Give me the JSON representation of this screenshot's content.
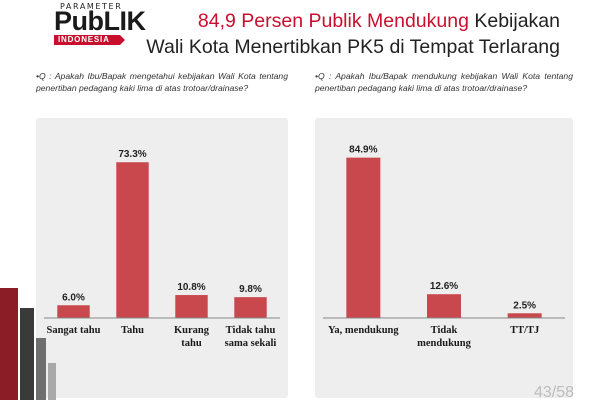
{
  "logo": {
    "tagline": "PARAMETER",
    "wordmark": "PubLIK",
    "ribbon": "INDONESIA"
  },
  "title": {
    "highlight": "84,9 Persen Publik Mendukung",
    "rest_line1": " Kebijakan",
    "line2": "Wali Kota Menertibkan PK5 di Tempat Terlarang"
  },
  "colors": {
    "accent": "#c8102e",
    "bar": "#c9484e",
    "panel": "#eeeeee"
  },
  "page_number": "43/58",
  "chart_data": [
    {
      "type": "bar",
      "question": "•Q : Apakah Ibu/Bapak mengetahui kebijakan Wali Kota tentang penertiban pedagang kaki lima di atas trotoar/drainase?",
      "categories": [
        [
          "Sangat tahu"
        ],
        [
          "Tahu"
        ],
        [
          "Kurang",
          "tahu"
        ],
        [
          "Tidak tahu",
          "sama sekali"
        ]
      ],
      "values": [
        6.0,
        73.3,
        10.8,
        9.8
      ],
      "value_labels": [
        "6.0%",
        "73.3%",
        "10.8%",
        "9.8%"
      ],
      "ylim": [
        0,
        80
      ],
      "grid": false
    },
    {
      "type": "bar",
      "question": "•Q : Apakah Ibu/Bapak mendukung kebijakan Wali Kota tentang penertiban pedagang kaki lima di atas trotoar/drainase?",
      "categories": [
        [
          "Ya, mendukung"
        ],
        [
          "Tidak",
          "mendukung"
        ],
        [
          "TT/TJ"
        ]
      ],
      "values": [
        84.9,
        12.6,
        2.5
      ],
      "value_labels": [
        "84.9%",
        "12.6%",
        "2.5%"
      ],
      "ylim": [
        0,
        90
      ],
      "grid": false
    }
  ]
}
